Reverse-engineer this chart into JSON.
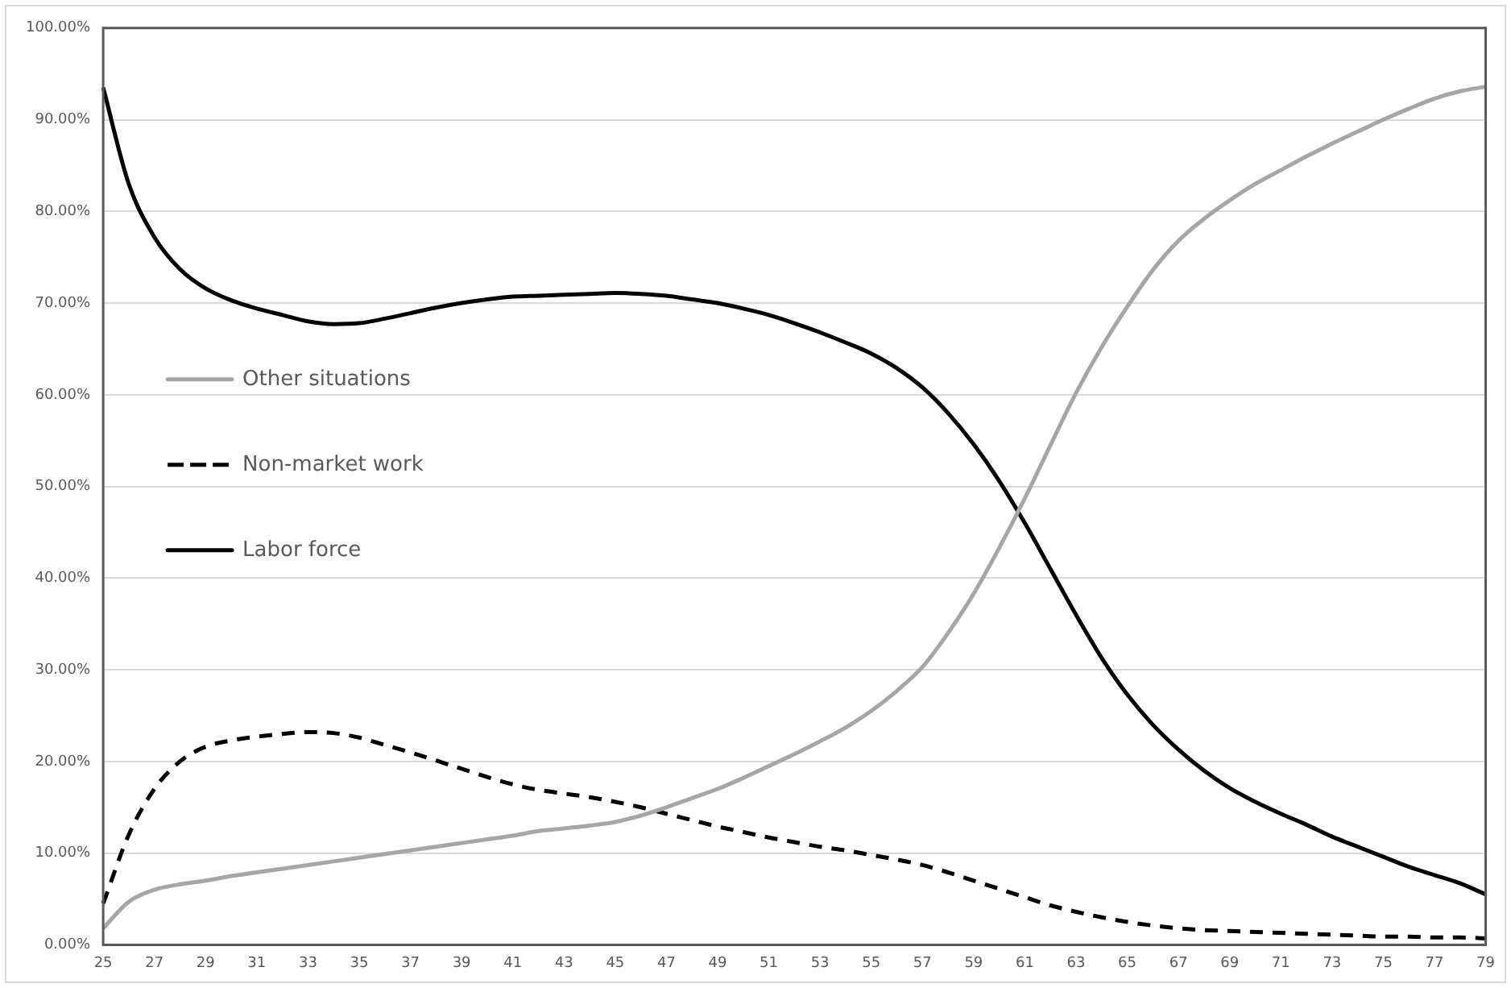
{
  "chart_data": {
    "type": "line",
    "categories": [
      "25",
      null,
      "27",
      null,
      "29",
      null,
      "31",
      null,
      "33",
      null,
      "35",
      null,
      "37",
      null,
      "39",
      null,
      "41",
      null,
      "43",
      null,
      "45",
      null,
      "47",
      null,
      "49",
      null,
      "51",
      null,
      "53",
      null,
      "55",
      null,
      "57",
      null,
      "59",
      null,
      "61",
      null,
      "63",
      null,
      "65",
      null,
      "67",
      null,
      "69",
      null,
      "71",
      null,
      "73",
      null,
      "75",
      null,
      "77",
      null,
      "79"
    ],
    "series": [
      {
        "name": "Other situations",
        "color": "#a6a6a6",
        "line_style": "solid",
        "values": [
          1.8,
          4.7,
          6.0,
          6.6,
          7.0,
          7.5,
          7.9,
          8.3,
          8.7,
          9.1,
          9.5,
          9.9,
          10.3,
          10.7,
          11.1,
          11.5,
          11.9,
          12.4,
          12.7,
          13.0,
          13.4,
          14.1,
          15.0,
          16.0,
          17.0,
          18.2,
          19.5,
          20.8,
          22.2,
          23.7,
          25.5,
          27.7,
          30.3,
          34.0,
          38.3,
          43.3,
          48.7,
          54.5,
          60.2,
          65.2,
          69.6,
          73.6,
          76.8,
          79.2,
          81.2,
          83.0,
          84.5,
          86.0,
          87.4,
          88.7,
          90.0,
          91.2,
          92.3,
          93.1,
          93.6
        ]
      },
      {
        "name": "Non-market work",
        "color": "#000000",
        "line_style": "dashed",
        "values": [
          4.5,
          12.0,
          17.0,
          20.0,
          21.6,
          22.3,
          22.7,
          23.0,
          23.2,
          23.1,
          22.6,
          21.8,
          21.0,
          20.1,
          19.2,
          18.3,
          17.5,
          16.9,
          16.5,
          16.1,
          15.6,
          15.0,
          14.3,
          13.6,
          12.9,
          12.3,
          11.7,
          11.2,
          10.7,
          10.3,
          9.8,
          9.3,
          8.7,
          7.9,
          7.0,
          6.1,
          5.2,
          4.3,
          3.6,
          3.0,
          2.5,
          2.1,
          1.8,
          1.6,
          1.5,
          1.4,
          1.3,
          1.2,
          1.1,
          1.0,
          0.9,
          0.9,
          0.8,
          0.8,
          0.7
        ]
      },
      {
        "name": "Labor force",
        "color": "#000000",
        "line_style": "solid",
        "values": [
          93.5,
          83.0,
          77.2,
          73.7,
          71.6,
          70.3,
          69.4,
          68.7,
          68.0,
          67.7,
          67.8,
          68.3,
          68.9,
          69.5,
          70.0,
          70.4,
          70.7,
          70.8,
          70.9,
          71.0,
          71.1,
          71.0,
          70.8,
          70.4,
          70.0,
          69.4,
          68.7,
          67.8,
          66.8,
          65.7,
          64.5,
          62.9,
          60.8,
          58.0,
          54.6,
          50.6,
          46.0,
          41.0,
          36.0,
          31.3,
          27.3,
          24.0,
          21.3,
          19.0,
          17.1,
          15.6,
          14.3,
          13.1,
          11.8,
          10.7,
          9.6,
          8.5,
          7.6,
          6.7,
          5.5
        ]
      }
    ],
    "ylim": [
      0,
      100
    ],
    "yticks": [
      {
        "value": 0,
        "label": "0.00%"
      },
      {
        "value": 10,
        "label": "10.00%"
      },
      {
        "value": 20,
        "label": "20.00%"
      },
      {
        "value": 30,
        "label": "30.00%"
      },
      {
        "value": 40,
        "label": "40.00%"
      },
      {
        "value": 50,
        "label": "50.00%"
      },
      {
        "value": 60,
        "label": "60.00%"
      },
      {
        "value": 70,
        "label": "70.00%"
      },
      {
        "value": 80,
        "label": "80.00%"
      },
      {
        "value": 90,
        "label": "90.00%"
      },
      {
        "value": 100,
        "label": "100.00%"
      }
    ],
    "grid": "y",
    "legend": "top",
    "marker": "none"
  }
}
